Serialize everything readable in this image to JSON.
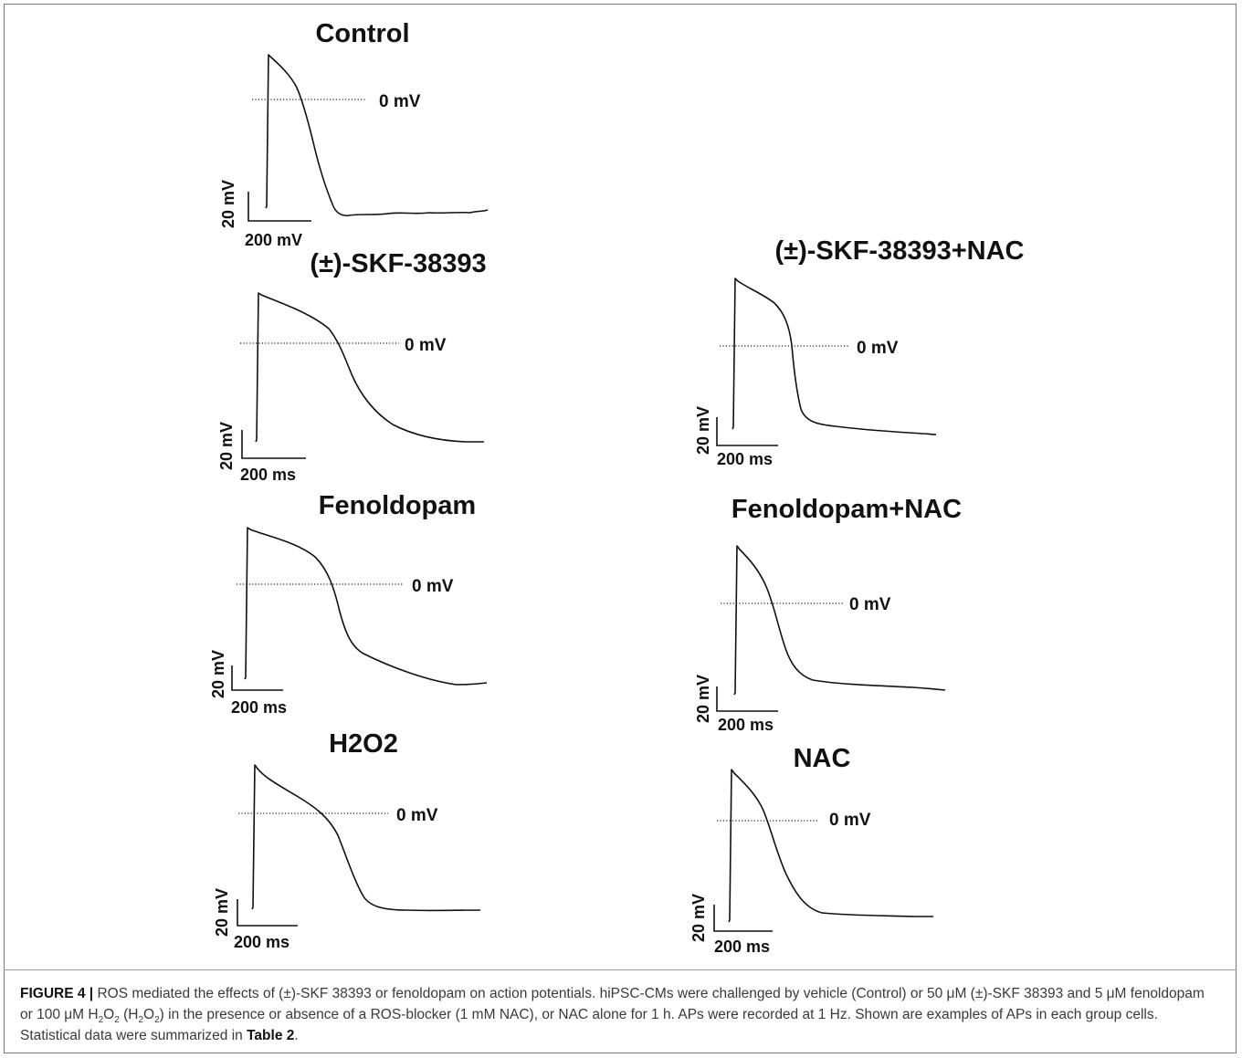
{
  "panels": [
    {
      "key": "control",
      "title": "Control",
      "zero_label": "0 mV",
      "scale_y_label": "20 mV",
      "scale_x_label": "200 mV"
    },
    {
      "key": "skf",
      "title": "(±)-SKF-38393",
      "zero_label": "0 mV",
      "scale_y_label": "20 mV",
      "scale_x_label": "200 ms"
    },
    {
      "key": "skf-nac",
      "title": "(±)-SKF-38393+NAC",
      "zero_label": "0 mV",
      "scale_y_label": "20 mV",
      "scale_x_label": "200 ms"
    },
    {
      "key": "fenoldopam",
      "title": "Fenoldopam",
      "zero_label": "0 mV",
      "scale_y_label": "20 mV",
      "scale_x_label": "200 ms"
    },
    {
      "key": "fenoldopam-nac",
      "title": "Fenoldopam+NAC",
      "zero_label": "0 mV",
      "scale_y_label": "20 mV",
      "scale_x_label": "200 ms"
    },
    {
      "key": "h2o2",
      "title": "H2O2",
      "zero_label": "0 mV",
      "scale_y_label": "20 mV",
      "scale_x_label": "200 ms"
    },
    {
      "key": "nac",
      "title": "NAC",
      "zero_label": "0 mV",
      "scale_y_label": "20 mV",
      "scale_x_label": "200 ms"
    }
  ],
  "caption": {
    "figure_label": "FIGURE 4 |",
    "s1": " ROS mediated the effects of (±)-SKF 38393 or fenoldopam on action potentials. hiPSC-CMs were challenged by vehicle (Control) or 50 μM (±)-SKF 38393 and 5 μM fenoldopam or 100 μM H",
    "sub1": "2",
    "s2": "O",
    "sub2": "2",
    "s3": " (H",
    "sub3": "2",
    "s4": "O",
    "sub4": "2",
    "s5": ") in the presence or absence of a ROS-blocker (1 mM NAC), or NAC alone for 1 h. APs were recorded at 1 Hz. Shown are examples of APs in each group cells. Statistical data were summarized in ",
    "table_ref": "Table 2",
    "end": "."
  }
}
